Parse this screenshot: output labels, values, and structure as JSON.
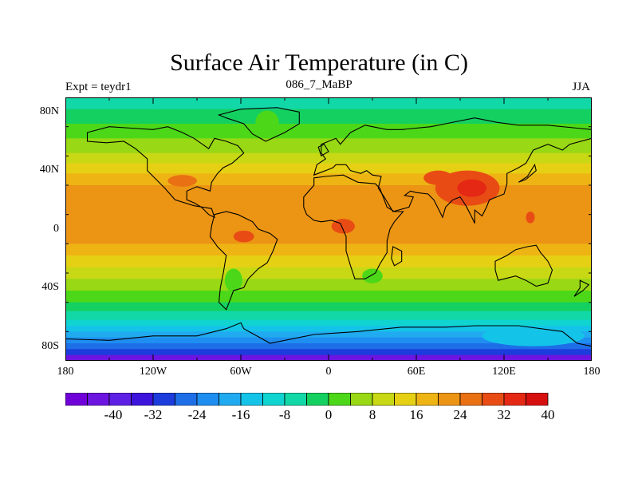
{
  "title": "Surface Air Temperature (in C)",
  "subtitle_left": "Expt = teydr1",
  "subtitle_center": "086_7_MaBP",
  "subtitle_right": "JJA",
  "y_ticks": [
    "80N",
    "40N",
    "0",
    "40S",
    "80S"
  ],
  "x_ticks": [
    "180",
    "120W",
    "60W",
    "0",
    "60E",
    "120E",
    "180"
  ],
  "colorbar_labels": [
    "-40",
    "-32",
    "-24",
    "-16",
    "-8",
    "0",
    "8",
    "16",
    "24",
    "32",
    "40"
  ],
  "colorbar_colors": [
    "#7000d8",
    "#6c14e0",
    "#5e20e4",
    "#3c14dc",
    "#1c3cdc",
    "#1e6ee8",
    "#1e8ef0",
    "#20aaf0",
    "#14c4e8",
    "#10d4d0",
    "#12d8a8",
    "#14d060",
    "#4cd818",
    "#98d814",
    "#c8d814",
    "#e6d014",
    "#eeb414",
    "#ec9414",
    "#ea7014",
    "#e84c14",
    "#e42814",
    "#d80f0f"
  ],
  "map_bands": [
    {
      "lat_top": 90,
      "lat_bot": 82,
      "color": "#12d8a8"
    },
    {
      "lat_top": 82,
      "lat_bot": 72,
      "color": "#14d060"
    },
    {
      "lat_top": 72,
      "lat_bot": 62,
      "color": "#4cd818"
    },
    {
      "lat_top": 62,
      "lat_bot": 52,
      "color": "#98d814"
    },
    {
      "lat_top": 52,
      "lat_bot": 45,
      "color": "#c8d814"
    },
    {
      "lat_top": 45,
      "lat_bot": 38,
      "color": "#e6d014"
    },
    {
      "lat_top": 38,
      "lat_bot": 30,
      "color": "#eeb414"
    },
    {
      "lat_top": 30,
      "lat_bot": -10,
      "color": "#ec9414"
    },
    {
      "lat_top": -10,
      "lat_bot": -18,
      "color": "#eeb414"
    },
    {
      "lat_top": -18,
      "lat_bot": -26,
      "color": "#e6d014"
    },
    {
      "lat_top": -26,
      "lat_bot": -34,
      "color": "#c8d814"
    },
    {
      "lat_top": -34,
      "lat_bot": -42,
      "color": "#98d814"
    },
    {
      "lat_top": -42,
      "lat_bot": -50,
      "color": "#4cd818"
    },
    {
      "lat_top": -50,
      "lat_bot": -56,
      "color": "#14d060"
    },
    {
      "lat_top": -56,
      "lat_bot": -62,
      "color": "#12d8a8"
    },
    {
      "lat_top": -62,
      "lat_bot": -66,
      "color": "#10d4d0"
    },
    {
      "lat_top": -66,
      "lat_bot": -70,
      "color": "#14c4e8"
    },
    {
      "lat_top": -70,
      "lat_bot": -74,
      "color": "#20aaf0"
    },
    {
      "lat_top": -74,
      "lat_bot": -78,
      "color": "#1e8ef0"
    },
    {
      "lat_top": -78,
      "lat_bot": -82,
      "color": "#1e6ee8"
    },
    {
      "lat_top": -82,
      "lat_bot": -86,
      "color": "#1c3cdc"
    },
    {
      "lat_top": -86,
      "lat_bot": -90,
      "color": "#6c14e0"
    }
  ],
  "hot_spots": [
    {
      "lon": 95,
      "lat": 28,
      "rx": 22,
      "ry": 12,
      "color": "#e84c14"
    },
    {
      "lon": 98,
      "lat": 28,
      "rx": 10,
      "ry": 6,
      "color": "#e42814"
    },
    {
      "lon": 75,
      "lat": 35,
      "rx": 10,
      "ry": 5,
      "color": "#e84c14"
    },
    {
      "lon": 10,
      "lat": 2,
      "rx": 8,
      "ry": 5,
      "color": "#e84c14"
    },
    {
      "lon": -58,
      "lat": -5,
      "rx": 7,
      "ry": 4,
      "color": "#e84c14"
    },
    {
      "lon": -100,
      "lat": 33,
      "rx": 10,
      "ry": 4,
      "color": "#ea7014"
    },
    {
      "lon": 138,
      "lat": 8,
      "rx": 3,
      "ry": 4,
      "color": "#e84c14"
    }
  ],
  "cold_spots": [
    {
      "lon": -42,
      "lat": 73,
      "rx": 8,
      "ry": 8,
      "color": "#4cd818"
    },
    {
      "lon": 140,
      "lat": -73,
      "rx": 35,
      "ry": 7,
      "color": "#14c4e8"
    },
    {
      "lon": 30,
      "lat": -32,
      "rx": 7,
      "ry": 5,
      "color": "#4cd818"
    },
    {
      "lon": -65,
      "lat": -35,
      "rx": 6,
      "ry": 8,
      "color": "#4cd818"
    }
  ],
  "coastlines": [
    [
      [
        -165,
        66
      ],
      [
        -150,
        70
      ],
      [
        -135,
        69
      ],
      [
        -120,
        68
      ],
      [
        -110,
        70
      ],
      [
        -100,
        66
      ],
      [
        -92,
        62
      ],
      [
        -82,
        55
      ],
      [
        -78,
        62
      ],
      [
        -70,
        60
      ],
      [
        -62,
        57
      ],
      [
        -58,
        52
      ],
      [
        -66,
        45
      ],
      [
        -72,
        42
      ],
      [
        -76,
        38
      ],
      [
        -80,
        32
      ],
      [
        -81,
        26
      ],
      [
        -90,
        29
      ],
      [
        -97,
        26
      ],
      [
        -97,
        20
      ],
      [
        -92,
        18
      ],
      [
        -87,
        15
      ],
      [
        -82,
        10
      ],
      [
        -78,
        8
      ],
      [
        -80,
        14
      ],
      [
        -92,
        16
      ],
      [
        -105,
        20
      ],
      [
        -112,
        28
      ],
      [
        -117,
        33
      ],
      [
        -124,
        40
      ],
      [
        -124,
        48
      ],
      [
        -132,
        55
      ],
      [
        -140,
        60
      ],
      [
        -152,
        59
      ],
      [
        -165,
        60
      ],
      [
        -165,
        66
      ]
    ],
    [
      [
        -78,
        10
      ],
      [
        -70,
        12
      ],
      [
        -62,
        10
      ],
      [
        -52,
        5
      ],
      [
        -48,
        0
      ],
      [
        -40,
        -3
      ],
      [
        -35,
        -7
      ],
      [
        -38,
        -15
      ],
      [
        -42,
        -23
      ],
      [
        -48,
        -27
      ],
      [
        -55,
        -34
      ],
      [
        -58,
        -40
      ],
      [
        -65,
        -42
      ],
      [
        -68,
        -50
      ],
      [
        -70,
        -55
      ],
      [
        -75,
        -50
      ],
      [
        -74,
        -40
      ],
      [
        -72,
        -30
      ],
      [
        -70,
        -18
      ],
      [
        -76,
        -12
      ],
      [
        -81,
        -5
      ],
      [
        -80,
        2
      ],
      [
        -78,
        10
      ]
    ],
    [
      [
        -10,
        35
      ],
      [
        -2,
        36
      ],
      [
        10,
        37
      ],
      [
        20,
        32
      ],
      [
        32,
        31
      ],
      [
        35,
        28
      ],
      [
        40,
        15
      ],
      [
        45,
        12
      ],
      [
        51,
        12
      ],
      [
        45,
        5
      ],
      [
        42,
        0
      ],
      [
        40,
        -8
      ],
      [
        40,
        -16
      ],
      [
        35,
        -24
      ],
      [
        32,
        -30
      ],
      [
        25,
        -34
      ],
      [
        18,
        -34
      ],
      [
        15,
        -25
      ],
      [
        12,
        -15
      ],
      [
        12,
        -5
      ],
      [
        8,
        4
      ],
      [
        2,
        6
      ],
      [
        -5,
        5
      ],
      [
        -10,
        6
      ],
      [
        -15,
        10
      ],
      [
        -17,
        15
      ],
      [
        -17,
        22
      ],
      [
        -10,
        30
      ],
      [
        -10,
        35
      ]
    ],
    [
      [
        -10,
        37
      ],
      [
        -8,
        44
      ],
      [
        -2,
        48
      ],
      [
        -5,
        52
      ],
      [
        -5,
        58
      ],
      [
        5,
        62
      ],
      [
        8,
        58
      ],
      [
        15,
        66
      ],
      [
        25,
        71
      ],
      [
        40,
        68
      ],
      [
        50,
        68
      ],
      [
        70,
        70
      ],
      [
        80,
        72
      ],
      [
        100,
        76
      ],
      [
        115,
        73
      ],
      [
        130,
        71
      ],
      [
        150,
        71
      ],
      [
        170,
        69
      ],
      [
        180,
        68
      ],
      [
        180,
        62
      ],
      [
        165,
        58
      ],
      [
        160,
        54
      ],
      [
        150,
        58
      ],
      [
        140,
        54
      ],
      [
        135,
        45
      ],
      [
        130,
        42
      ],
      [
        122,
        38
      ],
      [
        122,
        31
      ],
      [
        120,
        24
      ],
      [
        110,
        20
      ],
      [
        108,
        15
      ],
      [
        105,
        9
      ],
      [
        100,
        13
      ],
      [
        100,
        4
      ],
      [
        98,
        8
      ],
      [
        94,
        16
      ],
      [
        90,
        22
      ],
      [
        85,
        20
      ],
      [
        80,
        15
      ],
      [
        78,
        8
      ],
      [
        72,
        20
      ],
      [
        68,
        24
      ],
      [
        60,
        25
      ],
      [
        56,
        26
      ],
      [
        52,
        23
      ],
      [
        58,
        22
      ],
      [
        55,
        15
      ],
      [
        44,
        12
      ],
      [
        38,
        22
      ],
      [
        34,
        28
      ],
      [
        36,
        36
      ],
      [
        30,
        37
      ],
      [
        26,
        40
      ],
      [
        22,
        38
      ],
      [
        15,
        40
      ],
      [
        12,
        44
      ],
      [
        5,
        44
      ],
      [
        3,
        42
      ],
      [
        -2,
        40
      ],
      [
        -10,
        37
      ]
    ],
    [
      [
        114,
        -22
      ],
      [
        122,
        -18
      ],
      [
        128,
        -14
      ],
      [
        136,
        -12
      ],
      [
        142,
        -11
      ],
      [
        145,
        -16
      ],
      [
        150,
        -22
      ],
      [
        153,
        -28
      ],
      [
        150,
        -37
      ],
      [
        142,
        -39
      ],
      [
        135,
        -35
      ],
      [
        128,
        -32
      ],
      [
        116,
        -35
      ],
      [
        114,
        -28
      ],
      [
        114,
        -22
      ]
    ],
    [
      [
        -75,
        78
      ],
      [
        -60,
        82
      ],
      [
        -35,
        83
      ],
      [
        -20,
        80
      ],
      [
        -20,
        72
      ],
      [
        -30,
        66
      ],
      [
        -43,
        60
      ],
      [
        -52,
        65
      ],
      [
        -58,
        72
      ],
      [
        -70,
        76
      ],
      [
        -75,
        78
      ]
    ],
    [
      [
        -180,
        -75
      ],
      [
        -150,
        -76
      ],
      [
        -120,
        -73
      ],
      [
        -90,
        -73
      ],
      [
        -70,
        -68
      ],
      [
        -60,
        -64
      ],
      [
        -58,
        -68
      ],
      [
        -40,
        -78
      ],
      [
        -10,
        -72
      ],
      [
        20,
        -70
      ],
      [
        50,
        -67
      ],
      [
        80,
        -67
      ],
      [
        100,
        -66
      ],
      [
        130,
        -66
      ],
      [
        160,
        -70
      ],
      [
        170,
        -78
      ],
      [
        180,
        -80
      ],
      [
        180,
        -90
      ],
      [
        -180,
        -90
      ],
      [
        -180,
        -75
      ]
    ],
    [
      [
        44,
        -12
      ],
      [
        50,
        -15
      ],
      [
        50,
        -22
      ],
      [
        45,
        -25
      ],
      [
        43,
        -20
      ],
      [
        44,
        -12
      ]
    ],
    [
      [
        172,
        -35
      ],
      [
        178,
        -38
      ],
      [
        174,
        -42
      ],
      [
        168,
        -46
      ],
      [
        172,
        -40
      ],
      [
        172,
        -35
      ]
    ],
    [
      [
        130,
        32
      ],
      [
        135,
        34
      ],
      [
        142,
        40
      ],
      [
        141,
        44
      ],
      [
        136,
        36
      ],
      [
        130,
        32
      ]
    ],
    [
      [
        -5,
        50
      ],
      [
        0,
        53
      ],
      [
        -3,
        58
      ],
      [
        -7,
        56
      ],
      [
        -5,
        50
      ]
    ]
  ]
}
